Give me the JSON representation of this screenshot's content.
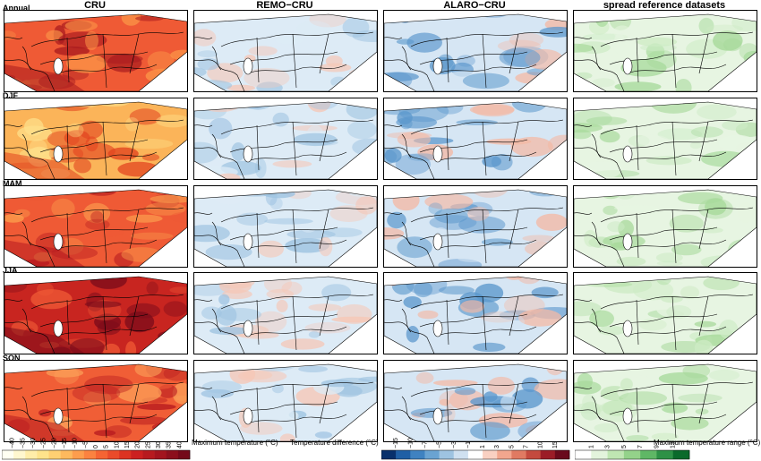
{
  "columns": [
    "CRU",
    "REMO−CRU",
    "ALARO−CRU",
    "spread reference datasets"
  ],
  "rows": [
    "Annual",
    "DJF",
    "MAM",
    "JJA",
    "SON"
  ],
  "colorbars": [
    {
      "label": "Maximum temperature (°C)",
      "ticks": [
        "−40",
        "−35",
        "−30",
        "−25",
        "−20",
        "−15",
        "−10",
        "−5",
        "0",
        "5",
        "10",
        "15",
        "20",
        "25",
        "30",
        "35",
        "40"
      ],
      "colors": [
        "#fffff2",
        "#fff7cf",
        "#ffeda9",
        "#fee38b",
        "#fed072",
        "#fdb95e",
        "#fd9d4d",
        "#fb8240",
        "#f56433",
        "#ea4b2a",
        "#dc3322",
        "#cc2020",
        "#b71a1f",
        "#a3141e",
        "#8c0f1c",
        "#74091a"
      ]
    },
    {
      "label": "Temperature difference (°C)",
      "ticks": [
        "−15",
        "−10",
        "−7",
        "−5",
        "−3",
        "−1",
        "1",
        "3",
        "5",
        "7",
        "10",
        "15"
      ],
      "colors": [
        "#08306b",
        "#1f5fa5",
        "#3f82c1",
        "#6aa3d2",
        "#9ec3e1",
        "#cfe0f0",
        "#ffffff",
        "#f9d0c2",
        "#f2a68e",
        "#e07a62",
        "#c44a3e",
        "#9b1c27",
        "#6a0a1c"
      ]
    },
    {
      "label": "Maximum temperature range (°C)",
      "ticks": [
        "1",
        "3",
        "5",
        "7",
        "9",
        "13"
      ],
      "colors": [
        "#ffffff",
        "#e3f4dc",
        "#bfe6b2",
        "#94d28a",
        "#5fb765",
        "#2e9146",
        "#0b6a2b"
      ]
    }
  ],
  "panel_styles": [
    {
      "base": "#f0603a",
      "dark": "#c62a22",
      "light": "#fba35a"
    },
    {
      "base": "#ddebf6",
      "dark": "#9ec3e1",
      "warm": "#f6c7b6"
    },
    {
      "base": "#d6e6f4",
      "dark": "#5b97cc",
      "warm": "#f4b9a5"
    },
    {
      "base": "#e7f5e2",
      "dark": "#a6d99a",
      "light": "#cdebc5"
    }
  ],
  "row_styles": [
    {
      "cru": "#ef5a35",
      "cru_dark": "#a81a1e",
      "cru_light": "#fb9447"
    },
    {
      "cru": "#fbb459",
      "cru_dark": "#e2431f",
      "cru_light": "#fee08a"
    },
    {
      "cru": "#ef5a35",
      "cru_dark": "#b71a1f",
      "cru_light": "#fb9d4d"
    },
    {
      "cru": "#c82520",
      "cru_dark": "#7a0b1a",
      "cru_light": "#ef5a35"
    },
    {
      "cru": "#f05e36",
      "cru_dark": "#b71a1f",
      "cru_light": "#fca35a"
    }
  ]
}
